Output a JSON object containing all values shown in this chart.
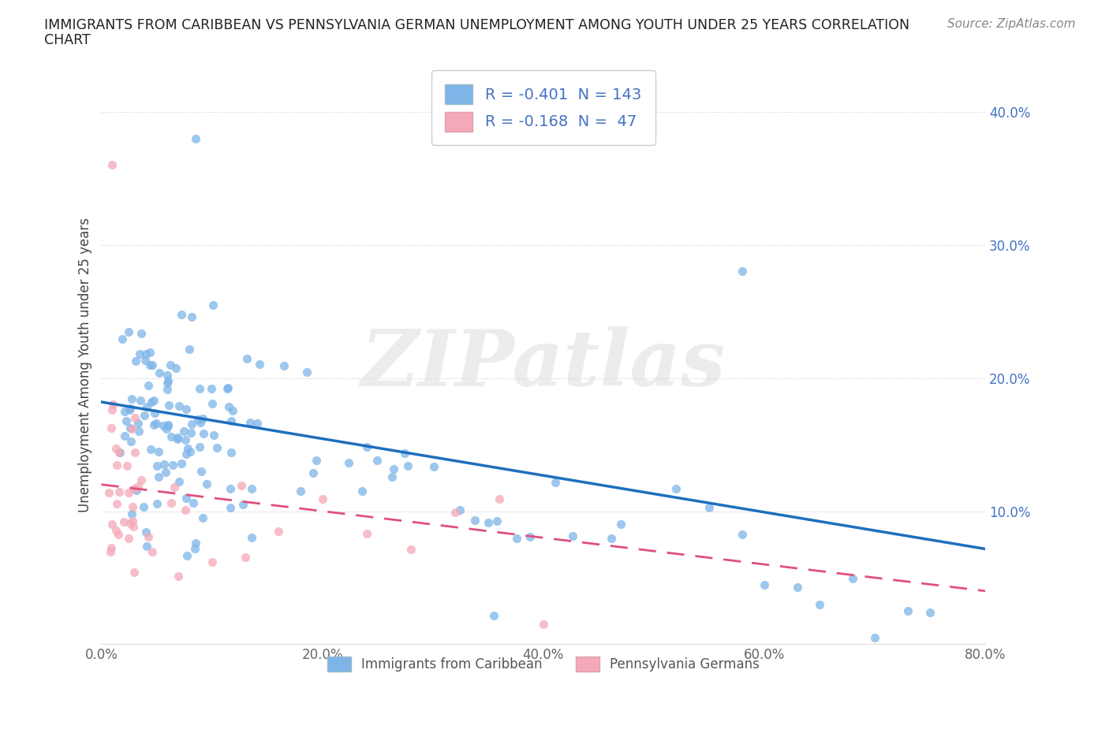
{
  "title_line1": "IMMIGRANTS FROM CARIBBEAN VS PENNSYLVANIA GERMAN UNEMPLOYMENT AMONG YOUTH UNDER 25 YEARS CORRELATION",
  "title_line2": "CHART",
  "source_text": "Source: ZipAtlas.com",
  "ylabel": "Unemployment Among Youth under 25 years",
  "xlim": [
    0.0,
    0.8
  ],
  "ylim": [
    0.0,
    0.42
  ],
  "xticks": [
    0.0,
    0.2,
    0.4,
    0.6,
    0.8
  ],
  "xticklabels": [
    "0.0%",
    "20.0%",
    "40.0%",
    "60.0%",
    "80.0%"
  ],
  "yticks_right": [
    0.0,
    0.1,
    0.2,
    0.3,
    0.4
  ],
  "yticklabels_right": [
    "",
    "10.0%",
    "20.0%",
    "30.0%",
    "40.0%"
  ],
  "caribbean_color": "#7EB5E8",
  "penn_german_color": "#F4A8B8",
  "caribbean_line_color": "#1E6FBF",
  "penn_german_line_color": "#E05080",
  "R_caribbean": -0.401,
  "N_caribbean": 143,
  "R_penn": -0.168,
  "N_penn": 47,
  "legend_label_caribbean": "Immigrants from Caribbean",
  "legend_label_penn": "Pennsylvania Germans",
  "watermark": "ZIPatlas",
  "legend1_text": [
    "R = -0.401  N = 143",
    "R = -0.168  N =  47"
  ],
  "legend_text_color": "#4472C4",
  "title_color": "#222222",
  "source_color": "#888888",
  "ylabel_color": "#444444",
  "grid_color": "#CCCCCC",
  "bottom_legend_color": "#555555"
}
